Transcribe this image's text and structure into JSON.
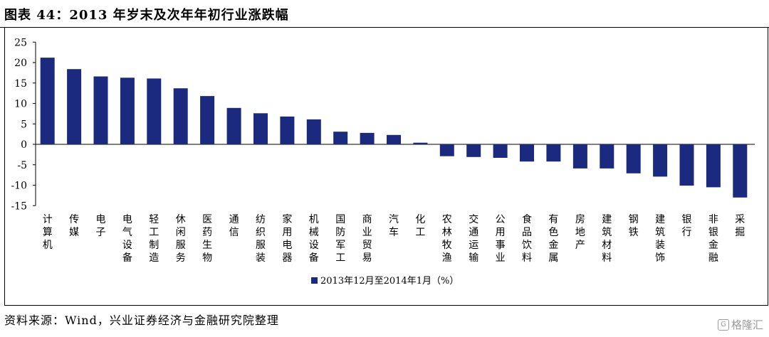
{
  "header": {
    "title": "图表 44：2013 年岁末及次年年初行业涨跌幅"
  },
  "footer": {
    "source": "资料来源：Wind，兴业证券经济与金融研究院整理",
    "watermark": "格隆汇"
  },
  "chart_data": {
    "type": "bar",
    "categories": [
      "计算机",
      "传媒",
      "电子",
      "电气设备",
      "轻工制造",
      "休闲服务",
      "医药生物",
      "通信",
      "纺织服装",
      "家用电器",
      "机械设备",
      "国防军工",
      "商业贸易",
      "汽车",
      "化工",
      "农林牧渔",
      "交通运输",
      "公用事业",
      "食品饮料",
      "有色金属",
      "房地产",
      "建筑材料",
      "钢铁",
      "建筑装饰",
      "银行",
      "非银金融",
      "采掘"
    ],
    "series": [
      {
        "name": "2013年12月至2014年1月（%）",
        "values": [
          21.2,
          18.4,
          16.6,
          16.3,
          16.1,
          13.7,
          11.8,
          8.9,
          7.6,
          6.8,
          6.1,
          3.1,
          2.8,
          2.3,
          0.4,
          -2.9,
          -3.1,
          -3.3,
          -4.2,
          -4.2,
          -5.9,
          -5.9,
          -7.1,
          -7.9,
          -10.1,
          -10.5,
          -13.0
        ]
      }
    ],
    "yticks": [
      "25",
      "20",
      "15",
      "10",
      "5",
      "0",
      "-5",
      "-10",
      "-15"
    ],
    "ylim": [
      -15,
      25
    ],
    "grid": false,
    "legend_position": "bottom-center",
    "bar_color": "#1b2a7f"
  }
}
